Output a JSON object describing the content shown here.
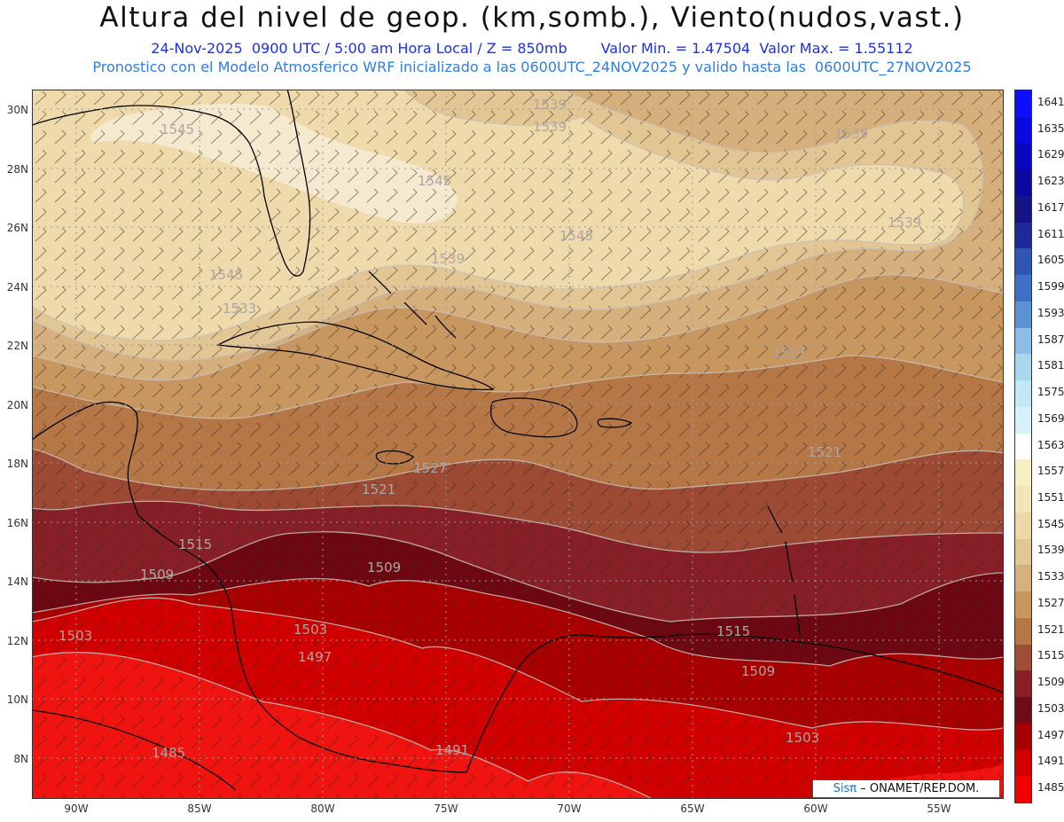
{
  "header": {
    "title": "Altura del nivel de geop. (km,somb.), Viento(nudos,vast.)",
    "date": "24-Nov-2025",
    "time": "0900 UTC / 5:00 am Hora Local / Z = 850mb",
    "min": "Valor Min. = 1.47504",
    "max": "Valor Max. = 1.55112",
    "model_pre": "Pronostico con el Modelo Atmosferico WRF inicializado a las 0600UTC_24NOV2025 y valido hasta las",
    "model_end": "0600UTC_27NOV2025"
  },
  "map": {
    "lat_labels": [
      "30N",
      "28N",
      "26N",
      "24N",
      "22N",
      "20N",
      "18N",
      "16N",
      "14N",
      "12N",
      "10N",
      "8N"
    ],
    "lon_labels": [
      "90W",
      "85W",
      "80W",
      "75W",
      "70W",
      "65W",
      "60W",
      "55W"
    ],
    "contour_labels": [
      "1545",
      "1539",
      "1539",
      "1545",
      "1545",
      "1539",
      "1545",
      "1539",
      "1539",
      "1533",
      "1527",
      "1521",
      "1527",
      "1521",
      "1515",
      "1509",
      "1509",
      "1503",
      "1503",
      "1497",
      "1515",
      "1509",
      "1503",
      "1485",
      "1491"
    ],
    "credit_brand": "Sisπ",
    "credit_org": "– ONAMET/REP.DOM."
  },
  "colorbar": {
    "levels": [
      "1641",
      "1635",
      "1629",
      "1623",
      "1617",
      "1611",
      "1605",
      "1599",
      "1593",
      "1587",
      "1581",
      "1575",
      "1569",
      "1563",
      "1557",
      "1551",
      "1545",
      "1539",
      "1533",
      "1527",
      "1521",
      "1515",
      "1509",
      "1503",
      "1497",
      "1491",
      "1485"
    ],
    "colors": [
      "#0d0dff",
      "#0a0ae0",
      "#0808c0",
      "#0a0aa0",
      "#141485",
      "#1e2a9a",
      "#2f55b5",
      "#3f70c5",
      "#5a92d2",
      "#8dbde6",
      "#a9d7ef",
      "#c2e7f5",
      "#d8f2fb",
      "#ffffff",
      "#f8efc4",
      "#f2e5b8",
      "#ecd8a6",
      "#e2c693",
      "#d6b07c",
      "#c8975f",
      "#b67747",
      "#9e4e34",
      "#872027",
      "#6f0c17",
      "#a80000",
      "#d20000",
      "#f40000"
    ]
  }
}
